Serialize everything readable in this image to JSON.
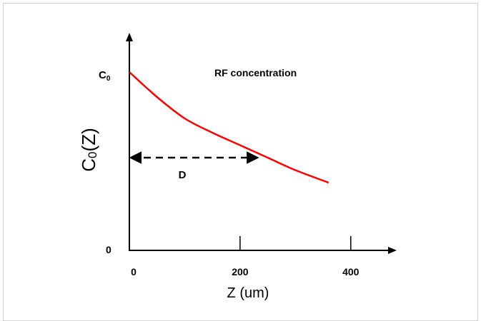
{
  "chart_data": {
    "type": "line",
    "title": "",
    "annotation": "RF concentration",
    "xlabel": "Z (um)",
    "ylabel": {
      "base": "C",
      "sub": "0",
      "rest": "(Z)"
    },
    "y_top_label": {
      "base": "C",
      "sub": "0"
    },
    "y_zero_label": "0",
    "x_ticks": [
      {
        "value": 0,
        "label": "0"
      },
      {
        "value": 200,
        "label": "200"
      },
      {
        "value": 400,
        "label": "400"
      }
    ],
    "xlim": [
      0,
      470
    ],
    "ylim": [
      0,
      1
    ],
    "series": [
      {
        "color": "#ff0000",
        "points": [
          [
            0,
            1.0
          ],
          [
            50,
            0.86
          ],
          [
            100,
            0.74
          ],
          [
            150,
            0.66
          ],
          [
            200,
            0.59
          ],
          [
            250,
            0.52
          ],
          [
            300,
            0.45
          ],
          [
            360,
            0.38
          ]
        ]
      }
    ],
    "arrow": {
      "label": "D",
      "y": 0.52,
      "x_start": 0,
      "x_end": 230,
      "style": "dashed",
      "heads": "both"
    },
    "grid": false,
    "legend": false
  }
}
